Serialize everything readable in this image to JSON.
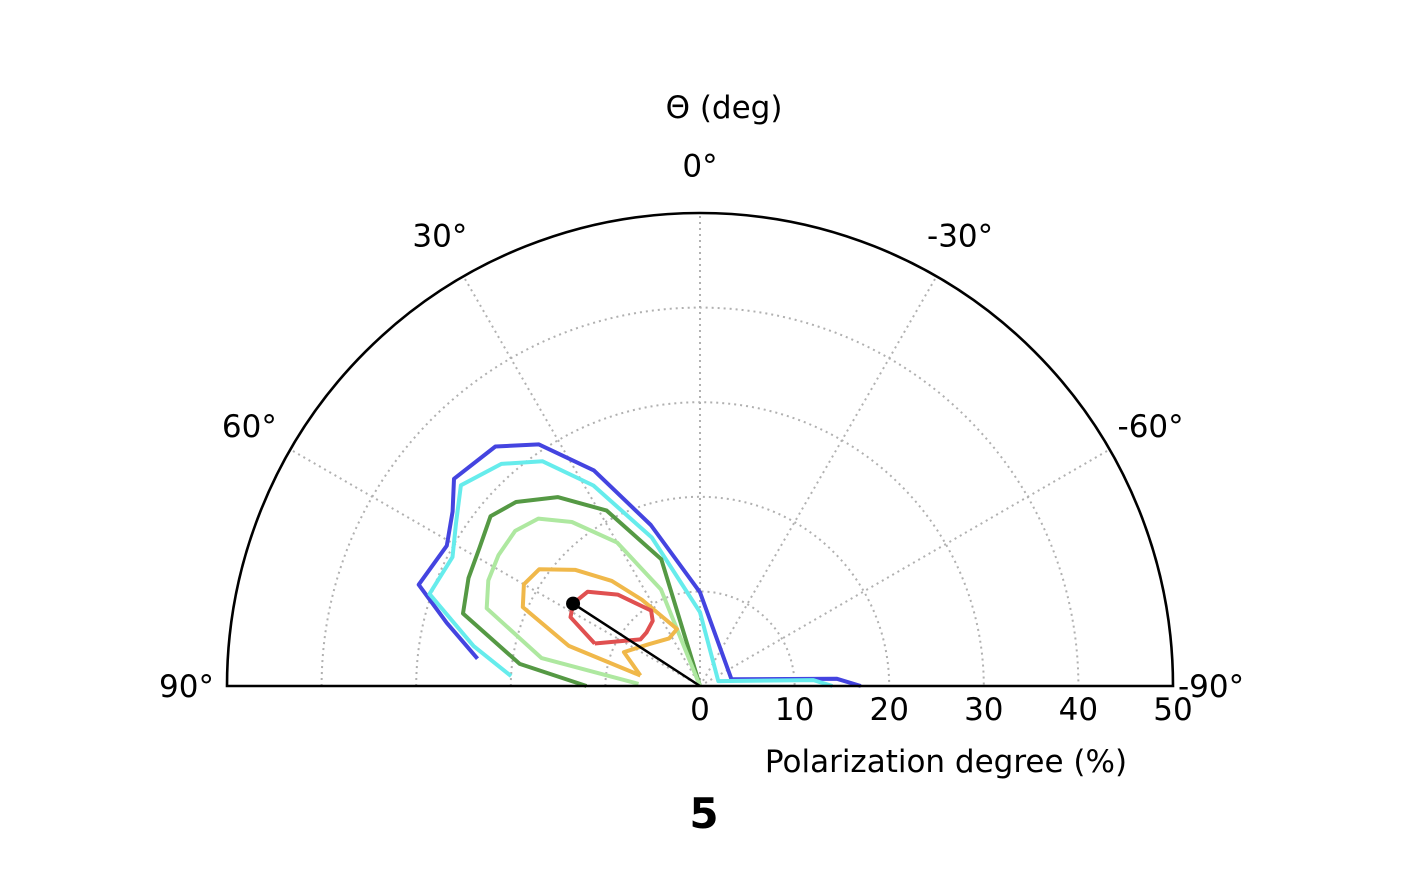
{
  "chart_data": {
    "type": "polar-contour",
    "panel_label": "5",
    "theta_title": "Θ (deg)",
    "radius_title": "Polarization degree (%)",
    "theta_range": [
      -90,
      90
    ],
    "theta_ticks": [
      0,
      30,
      60,
      90,
      -30,
      -60,
      -90
    ],
    "theta_tick_labels": [
      "0°",
      "30°",
      "60°",
      "90°",
      "-30°",
      "-60°",
      "-90°"
    ],
    "radius_range": [
      0,
      50
    ],
    "radius_ticks": [
      0,
      10,
      20,
      30,
      40,
      50
    ],
    "radius_tick_labels": [
      "0",
      "10",
      "20",
      "30",
      "40",
      "50"
    ],
    "grid": true,
    "point": {
      "theta_deg": 57,
      "radius": 16
    },
    "contours": [
      {
        "color": "#4444e0",
        "points": [
          [
            83.0,
            23.7
          ],
          [
            76.0,
            27.6
          ],
          [
            70.2,
            31.6
          ],
          [
            61.0,
            30.6
          ],
          [
            54.8,
            32.0
          ],
          [
            49.9,
            34.0
          ],
          [
            40.5,
            33.3
          ],
          [
            33.7,
            30.7
          ],
          [
            26.2,
            25.4
          ],
          [
            17.0,
            17.8
          ],
          [
            0.0,
            9.9
          ],
          [
            -78.0,
            3.4
          ],
          [
            -87.0,
            14.5
          ],
          [
            -90.0,
            17.0
          ]
        ]
      },
      {
        "color": "#66ecec",
        "points": [
          [
            87.0,
            20.0
          ],
          [
            80.0,
            24.3
          ],
          [
            71.2,
            30.2
          ],
          [
            62.5,
            29.5
          ],
          [
            56.3,
            31.0
          ],
          [
            50.0,
            33.0
          ],
          [
            41.8,
            31.5
          ],
          [
            35.0,
            29.0
          ],
          [
            28.0,
            24.0
          ],
          [
            18.0,
            16.5
          ],
          [
            0.0,
            7.8
          ],
          [
            -75.0,
            2.0
          ],
          [
            -87.0,
            12.0
          ],
          [
            -90.0,
            14.0
          ]
        ]
      },
      {
        "color": "#559944",
        "points": [
          [
            90.0,
            12.0
          ],
          [
            83.0,
            19.2
          ],
          [
            73.0,
            26.2
          ],
          [
            65.0,
            27.0
          ],
          [
            58.0,
            27.5
          ],
          [
            51.0,
            28.5
          ],
          [
            45.0,
            27.5
          ],
          [
            37.0,
            25.0
          ],
          [
            28.0,
            21.0
          ],
          [
            17.0,
            14.0
          ],
          [
            0.0,
            0.0
          ]
        ]
      },
      {
        "color": "#aee8a0",
        "points": [
          [
            88.0,
            6.5
          ],
          [
            80.0,
            17.0
          ],
          [
            70.0,
            24.0
          ],
          [
            63.5,
            25.0
          ],
          [
            57.0,
            25.4
          ],
          [
            50.0,
            25.5
          ],
          [
            44.0,
            24.6
          ],
          [
            38.0,
            22.0
          ],
          [
            30.0,
            17.5
          ],
          [
            22.0,
            11.0
          ],
          [
            0.0,
            0.0
          ]
        ]
      },
      {
        "color": "#f0b84a",
        "points": [
          [
            80.0,
            6.4
          ],
          [
            73.0,
            14.5
          ],
          [
            66.0,
            20.5
          ],
          [
            60.0,
            21.5
          ],
          [
            54.0,
            21.0
          ],
          [
            47.0,
            18.0
          ],
          [
            40.0,
            14.5
          ],
          [
            34.0,
            11.0
          ],
          [
            22.0,
            6.5
          ],
          [
            33.0,
            6.0
          ],
          [
            51.0,
            7.0
          ],
          [
            66.0,
            8.8
          ],
          [
            80.0,
            6.4
          ]
        ]
      },
      {
        "color": "#e05050",
        "points": [
          [
            68.0,
            12.0
          ],
          [
            62.0,
            15.5
          ],
          [
            57.0,
            16.0
          ],
          [
            50.0,
            15.5
          ],
          [
            42.0,
            13.0
          ],
          [
            33.0,
            9.5
          ],
          [
            36.0,
            8.5
          ],
          [
            45.0,
            8.0
          ],
          [
            52.0,
            8.0
          ],
          [
            68.0,
            12.0
          ]
        ]
      }
    ]
  }
}
